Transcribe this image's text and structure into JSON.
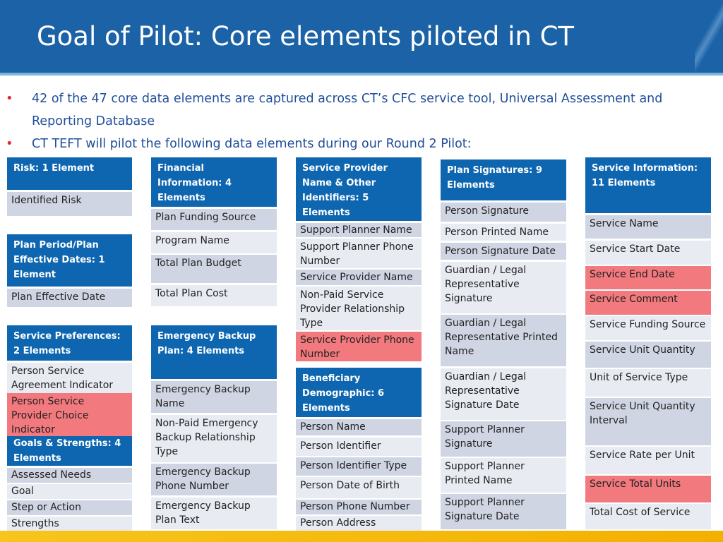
{
  "header": {
    "title": "Goal of Pilot: Core elements piloted in CT"
  },
  "bullets": [
    "42 of the 47 core data elements are captured across CT’s CFC service tool, Universal Assessment and Reporting Database",
    "CT TEFT will pilot the following data elements during our Round 2 Pilot:"
  ],
  "categories": {
    "risk": {
      "title": "Risk: 1 Element",
      "items": [
        "Identified Risk"
      ]
    },
    "plan_period": {
      "title": "Plan Period/Plan Effective Dates: 1 Element",
      "items": [
        "Plan Effective Date"
      ]
    },
    "service_preferences": {
      "title": "Service Preferences: 2 Elements",
      "items": [
        "Person Service Agreement Indicator",
        "Person Service Provider Choice Indicator"
      ]
    },
    "goals": {
      "title": "Goals & Strengths: 4 Elements",
      "items": [
        "Assessed Needs",
        "Goal",
        "Step or Action",
        "Strengths"
      ]
    },
    "financial": {
      "title": "Financial Information: 4 Elements",
      "items": [
        "Plan Funding Source",
        "Program Name",
        "Total Plan Budget",
        "Total Plan Cost"
      ]
    },
    "emergency": {
      "title": "Emergency Backup Plan: 4 Elements",
      "items": [
        "Emergency Backup Name",
        "Non-Paid Emergency Backup Relationship Type",
        "Emergency Backup Phone Number",
        "Emergency Backup Plan Text"
      ]
    },
    "provider": {
      "title": "Service Provider Name & Other Identifiers: 5 Elements",
      "items": [
        "Support Planner Name",
        "Support Planner Phone Number",
        "Service Provider Name",
        "Non-Paid Service Provider Relationship Type",
        "Service Provider Phone Number"
      ]
    },
    "beneficiary": {
      "title": "Beneficiary Demographic: 6 Elements",
      "items": [
        "Person Name",
        "Person Identifier",
        "Person Identifier Type",
        "Person Date of Birth",
        "Person Phone Number",
        "Person Address"
      ]
    },
    "signatures": {
      "title": "Plan Signatures: 9 Elements",
      "items": [
        "Person Signature",
        "Person Printed Name",
        "Person Signature Date",
        "Guardian / Legal Representative Signature",
        "Guardian / Legal Representative Printed Name",
        "Guardian / Legal Representative Signature Date",
        "Support Planner Signature",
        "Support Planner Printed Name",
        "Support Planner Signature Date"
      ]
    },
    "service_info": {
      "title": "Service Information: 11 Elements",
      "items": [
        "Service Name",
        "Service Start Date",
        "Service End Date",
        "Service Comment",
        "Service Funding Source",
        "Service Unit Quantity",
        "Unit of Service Type",
        "Service Unit Quantity Interval",
        "Service Rate per Unit",
        "Service Total Units",
        "Total Cost of Service"
      ]
    }
  },
  "colors": {
    "header_blue": "#1b62a6",
    "box_blue": "#0e66b0",
    "highlight_red": "#f2797d",
    "bullet_text": "#1f4e99",
    "footer_yellow": "#f7c51c"
  }
}
